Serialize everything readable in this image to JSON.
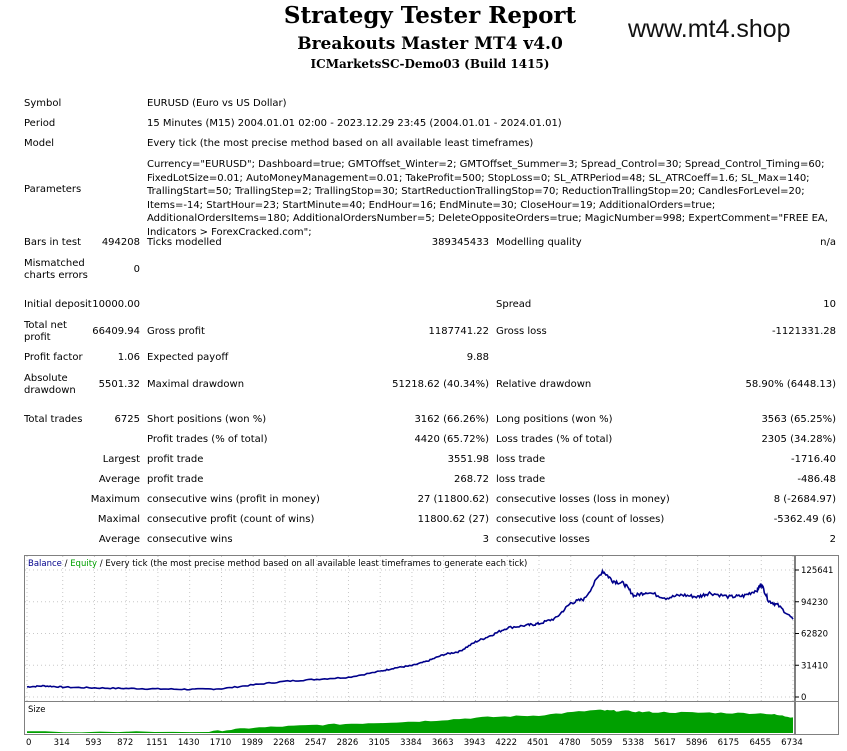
{
  "header": {
    "title": "Strategy Tester Report",
    "subtitle": "Breakouts Master MT4 v4.0",
    "account": "ICMarketsSC-Demo03 (Build 1415)",
    "brand": "www.mt4.shop"
  },
  "info": {
    "symbol_label": "Symbol",
    "symbol_value": "EURUSD (Euro vs US Dollar)",
    "period_label": "Period",
    "period_value": "15 Minutes (M15) 2004.01.01 02:00 - 2023.12.29 23:45 (2004.01.01 - 2024.01.01)",
    "model_label": "Model",
    "model_value": "Every tick (the most precise method based on all available least timeframes)",
    "parameters_label": "Parameters",
    "parameters_value": "Currency=\"EURUSD\"; Dashboard=true; GMTOffset_Winter=2; GMTOffset_Summer=3; Spread_Control=30; Spread_Control_Timing=60; FixedLotSize=0.01; AutoMoneyManagement=0.01; TakeProfit=500; StopLoss=0; SL_ATRPeriod=48; SL_ATRCoeff=1.6; SL_Max=140; TrallingStart=50; TrallingStep=2; TrallingStop=30; StartReductionTrallingStop=70; ReductionTrallingStop=20; CandlesForLevel=20; Items=-14; StartHour=23; StartMinute=40; EndHour=16; EndMinute=30; CloseHour=19; AdditionalOrders=true; AdditionalOrdersItems=180; AdditionalOrdersNumber=5; DeleteOppositeOrders=true; MagicNumber=998; ExpertComment=\"FREE EA, Indicators > ForexCracked.com\";"
  },
  "stats": {
    "bars_label": "Bars in test",
    "bars_value": "494208",
    "ticks_label": "Ticks modelled",
    "ticks_value": "389345433",
    "quality_label": "Modelling quality",
    "quality_value": "n/a",
    "mismatch_label_1": "Mismatched",
    "mismatch_label_2": "charts errors",
    "mismatch_value": "0",
    "deposit_label": "Initial deposit",
    "deposit_value": "10000.00",
    "spread_label": "Spread",
    "spread_value": "10",
    "net_label_1": "Total net",
    "net_label_2": "profit",
    "net_value": "66409.94",
    "gross_profit_label": "Gross profit",
    "gross_profit_value": "1187741.22",
    "gross_loss_label": "Gross loss",
    "gross_loss_value": "-1121331.28",
    "pf_label": "Profit factor",
    "pf_value": "1.06",
    "payoff_label": "Expected payoff",
    "payoff_value": "9.88",
    "abs_dd_label_1": "Absolute",
    "abs_dd_label_2": "drawdown",
    "abs_dd_value": "5501.32",
    "max_dd_label": "Maximal drawdown",
    "max_dd_value": "51218.62 (40.34%)",
    "rel_dd_label": "Relative drawdown",
    "rel_dd_value": "58.90% (6448.13)",
    "trades_label": "Total trades",
    "trades_value": "6725",
    "short_label": "Short positions (won %)",
    "short_value": "3162 (66.26%)",
    "long_label": "Long positions (won %)",
    "long_value": "3563 (65.25%)",
    "pt_label": "Profit trades (% of total)",
    "pt_value": "4420 (65.72%)",
    "lt_label": "Loss trades (% of total)",
    "lt_value": "2305 (34.28%)",
    "largest_label": "Largest",
    "largest_pt_label": "profit trade",
    "largest_pt_value": "3551.98",
    "largest_lt_label": "loss trade",
    "largest_lt_value": "-1716.40",
    "average_label": "Average",
    "average_pt_label": "profit trade",
    "average_pt_value": "268.72",
    "average_lt_label": "loss trade",
    "average_lt_value": "-486.48",
    "maximum_label": "Maximum",
    "max_cw_label": "consecutive wins (profit in money)",
    "max_cw_value": "27 (11800.62)",
    "max_cl_label": "consecutive losses (loss in money)",
    "max_cl_value": "8 (-2684.97)",
    "maximal_label": "Maximal",
    "mx_cp_label": "consecutive profit (count of wins)",
    "mx_cp_value": "11800.62 (27)",
    "mx_cl_label": "consecutive loss (count of losses)",
    "mx_cl_value": "-5362.49 (6)",
    "avg2_label": "Average",
    "avg_cw_label": "consecutive wins",
    "avg_cw_value": "3",
    "avg_cl_label": "consecutive losses",
    "avg_cl_value": "2"
  },
  "chart_legend": {
    "balance": "Balance",
    "sep": " / ",
    "equity": "Equity",
    "rest": " / Every tick (the most precise method based on all available least timeframes to generate each tick)",
    "size_label": "Size"
  },
  "colors": {
    "balance": "#00008b",
    "equity": "#008000",
    "size": "#00a000",
    "legend_balance": "#00008b",
    "legend_equity": "#00a000"
  },
  "chart_data": {
    "type": "line",
    "ylim": [
      0,
      125641
    ],
    "y_ticks": [
      "125641",
      "94230",
      "62820",
      "31410",
      "0"
    ],
    "xlim": [
      0,
      6734
    ],
    "x_ticks": [
      "0",
      "314",
      "593",
      "872",
      "1151",
      "1430",
      "1710",
      "1989",
      "2268",
      "2547",
      "2826",
      "3105",
      "3384",
      "3663",
      "3943",
      "4222",
      "4501",
      "4780",
      "5059",
      "5338",
      "5617",
      "5896",
      "6175",
      "6455",
      "6734"
    ],
    "series": [
      {
        "name": "Balance",
        "x": [
          0,
          150,
          314,
          593,
          872,
          1151,
          1430,
          1710,
          1989,
          2268,
          2547,
          2826,
          3105,
          3245,
          3384,
          3520,
          3663,
          3800,
          3943,
          4080,
          4222,
          4400,
          4501,
          4650,
          4780,
          4900,
          5059,
          5150,
          5250,
          5338,
          5450,
          5617,
          5760,
          5896,
          6000,
          6175,
          6300,
          6420,
          6455,
          6520,
          6600,
          6734
        ],
        "y": [
          10000,
          11000,
          9800,
          9000,
          8500,
          8000,
          7500,
          8200,
          12000,
          15500,
          17500,
          19500,
          25500,
          29000,
          31000,
          35500,
          42000,
          45000,
          54500,
          61000,
          68500,
          71000,
          72500,
          78000,
          93000,
          97000,
          125000,
          115000,
          112000,
          100000,
          104000,
          98000,
          101000,
          99000,
          103000,
          99000,
          100000,
          106000,
          112000,
          95000,
          91000,
          77000
        ]
      }
    ],
    "size_series": {
      "name": "Size",
      "x": [
        0,
        1600,
        1990,
        2500,
        3000,
        3500,
        4000,
        4500,
        5000,
        5200,
        5500,
        6000,
        6500,
        6734
      ],
      "y": [
        0.04,
        0.05,
        0.2,
        0.3,
        0.38,
        0.46,
        0.6,
        0.68,
        0.88,
        0.85,
        0.8,
        0.78,
        0.75,
        0.6
      ]
    }
  }
}
